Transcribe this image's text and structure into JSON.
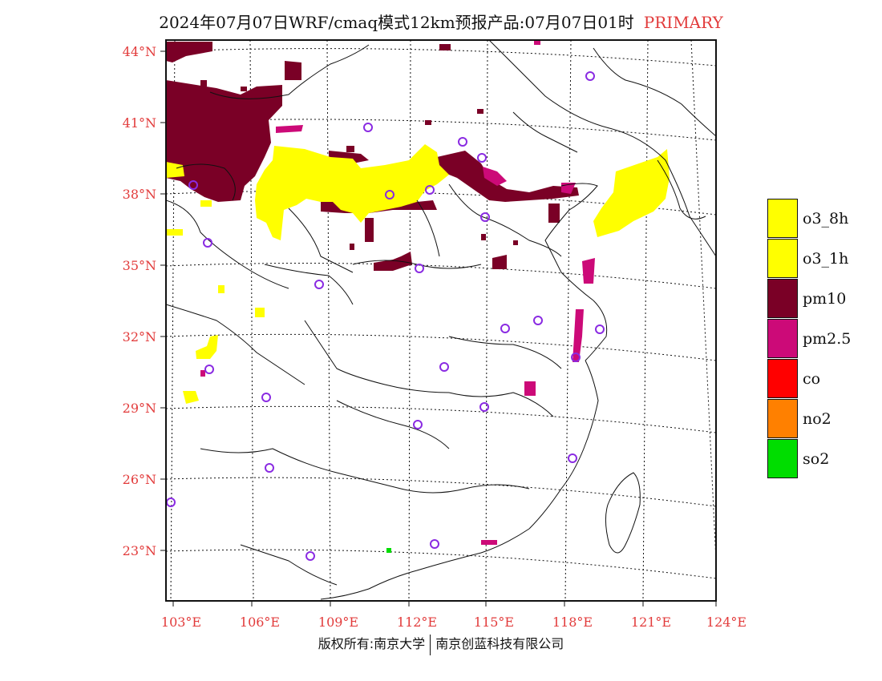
{
  "title": {
    "main": "2024年07月07日WRF/cmaq模式12km预报产品:07月07日01时",
    "tag": "PRIMARY"
  },
  "colors": {
    "o3_8h": "#ffff00",
    "o3_1h": "#ffff00",
    "pm10": "#7a0026",
    "pm2_5": "#cc0a78",
    "co": "#ff0000",
    "no2": "#ff8000",
    "so2": "#00dd00",
    "station": "#8a2be2",
    "tick_label": "#e23b3b"
  },
  "axes": {
    "lat_labels": [
      "44°N",
      "41°N",
      "38°N",
      "35°N",
      "32°N",
      "29°N",
      "26°N",
      "23°N"
    ],
    "lon_labels": [
      "103°E",
      "106°E",
      "109°E",
      "112°E",
      "115°E",
      "118°E",
      "121°E",
      "124°E"
    ]
  },
  "legend": [
    {
      "label": "o3_8h",
      "color": "#ffff00"
    },
    {
      "label": "o3_1h",
      "color": "#ffff00"
    },
    {
      "label": "pm10",
      "color": "#7a0026"
    },
    {
      "label": "pm2.5",
      "color": "#cc0a78"
    },
    {
      "label": "co",
      "color": "#ff0000"
    },
    {
      "label": "no2",
      "color": "#ff8000"
    },
    {
      "label": "so2",
      "color": "#00dd00"
    }
  ],
  "footer": {
    "left": "版权所有:南京大学",
    "right": "南京创蓝科技有限公司"
  }
}
